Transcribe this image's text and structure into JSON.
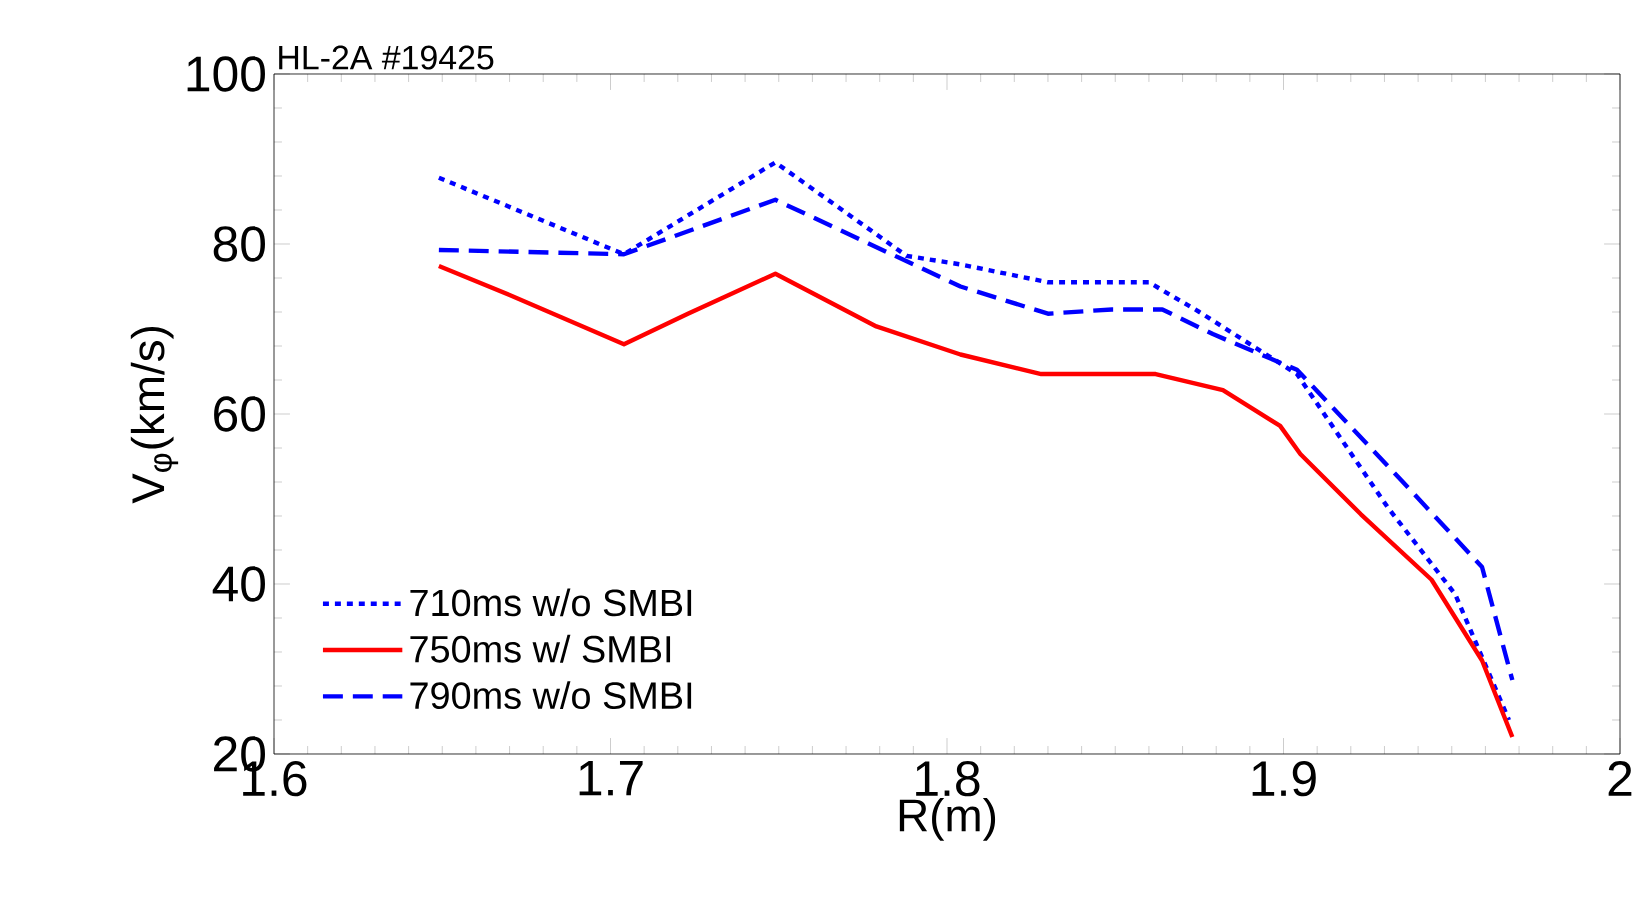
{
  "chart_data": {
    "type": "line",
    "xlabel": "R(m)",
    "ylabel": "V$_{φ}$(km/s)",
    "annotations": [
      "HL-2A #19425"
    ],
    "xlim": [
      1.6,
      2.0
    ],
    "ylim": [
      20,
      100
    ],
    "xticks": [
      1.6,
      1.7,
      1.8,
      1.9,
      2
    ],
    "yticks": [
      20,
      40,
      60,
      80,
      100
    ],
    "legend": "bottom left",
    "grid": false,
    "marker": "none",
    "series": [
      {
        "name": "710ms w/o SMBI",
        "color": "#0000ff",
        "line_style": "dotted",
        "x": [
          1.649,
          1.704,
          1.749,
          1.788,
          1.804,
          1.83,
          1.86,
          1.875,
          1.904,
          1.931,
          1.951,
          1.967
        ],
        "values": [
          87.8,
          78.8,
          89.6,
          78.6,
          77.6,
          75.5,
          75.5,
          72,
          64.7,
          49,
          38.8,
          24
        ]
      },
      {
        "name": "750ms w/ SMBI",
        "color": "#ff0000",
        "line_style": "solid",
        "x": [
          1.649,
          1.67,
          1.704,
          1.723,
          1.749,
          1.779,
          1.804,
          1.828,
          1.862,
          1.882,
          1.899,
          1.905,
          1.923,
          1.944,
          1.959,
          1.968
        ],
        "values": [
          77.4,
          74,
          68.2,
          71.8,
          76.5,
          70.3,
          67,
          64.7,
          64.7,
          62.8,
          58.6,
          55.3,
          48.2,
          40.5,
          31,
          22
        ]
      },
      {
        "name": "790ms w/o SMBI",
        "color": "#0000ff",
        "line_style": "dashed",
        "x": [
          1.649,
          1.704,
          1.749,
          1.804,
          1.83,
          1.849,
          1.864,
          1.879,
          1.904,
          1.935,
          1.959,
          1.968
        ],
        "values": [
          79.3,
          78.8,
          85.2,
          75,
          71.8,
          72.3,
          72.3,
          69.4,
          65.2,
          52.2,
          42,
          28.7
        ]
      }
    ]
  }
}
